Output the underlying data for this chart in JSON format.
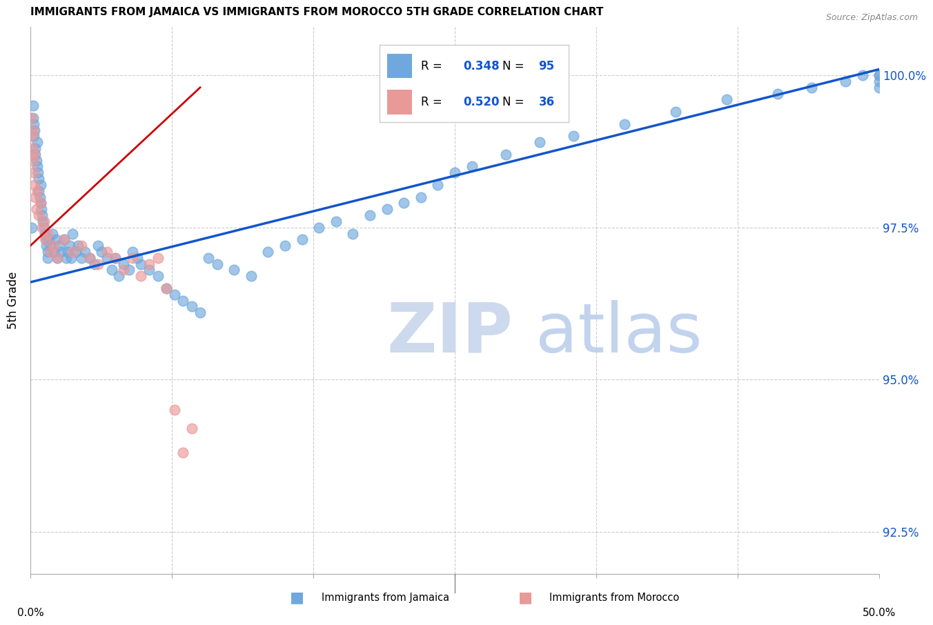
{
  "title": "IMMIGRANTS FROM JAMAICA VS IMMIGRANTS FROM MOROCCO 5TH GRADE CORRELATION CHART",
  "source": "Source: ZipAtlas.com",
  "ylabel": "5th Grade",
  "xlim": [
    0.0,
    50.0
  ],
  "ylim": [
    91.8,
    100.8
  ],
  "yticks": [
    92.5,
    95.0,
    97.5,
    100.0
  ],
  "jamaica_R": 0.348,
  "jamaica_N": 95,
  "morocco_R": 0.52,
  "morocco_N": 36,
  "jamaica_color": "#6fa8dc",
  "morocco_color": "#ea9999",
  "jamaica_line_color": "#1155cc",
  "morocco_line_color": "#cc0000",
  "jamaica_line": [
    0.0,
    50.0,
    96.6,
    100.1
  ],
  "morocco_line": [
    0.0,
    10.0,
    97.2,
    99.8
  ],
  "jamaica_x": [
    0.1,
    0.15,
    0.15,
    0.2,
    0.2,
    0.25,
    0.3,
    0.3,
    0.35,
    0.4,
    0.4,
    0.45,
    0.5,
    0.5,
    0.55,
    0.6,
    0.6,
    0.65,
    0.7,
    0.75,
    0.8,
    0.85,
    0.9,
    0.95,
    1.0,
    1.0,
    1.1,
    1.2,
    1.3,
    1.4,
    1.5,
    1.6,
    1.7,
    1.8,
    2.0,
    2.1,
    2.2,
    2.3,
    2.4,
    2.5,
    2.7,
    2.8,
    3.0,
    3.2,
    3.5,
    3.8,
    4.0,
    4.2,
    4.5,
    4.8,
    5.0,
    5.2,
    5.5,
    5.8,
    6.0,
    6.3,
    6.5,
    7.0,
    7.5,
    8.0,
    8.5,
    9.0,
    9.5,
    10.0,
    10.5,
    11.0,
    12.0,
    13.0,
    14.0,
    15.0,
    16.0,
    17.0,
    18.0,
    19.0,
    20.0,
    21.0,
    22.0,
    23.0,
    24.0,
    25.0,
    26.0,
    28.0,
    30.0,
    32.0,
    35.0,
    38.0,
    41.0,
    44.0,
    46.0,
    48.0,
    49.0,
    50.0,
    50.0,
    50.0,
    50.0
  ],
  "jamaica_y": [
    97.5,
    99.3,
    99.5,
    99.2,
    99.0,
    99.1,
    98.8,
    98.7,
    98.6,
    98.5,
    98.9,
    98.4,
    98.3,
    98.1,
    98.0,
    97.9,
    98.2,
    97.8,
    97.7,
    97.6,
    97.5,
    97.4,
    97.3,
    97.2,
    97.1,
    97.0,
    97.3,
    97.2,
    97.4,
    97.1,
    97.3,
    97.0,
    97.2,
    97.1,
    97.3,
    97.0,
    97.1,
    97.2,
    97.0,
    97.4,
    97.1,
    97.2,
    97.0,
    97.1,
    97.0,
    96.9,
    97.2,
    97.1,
    97.0,
    96.8,
    97.0,
    96.7,
    96.9,
    96.8,
    97.1,
    97.0,
    96.9,
    96.8,
    96.7,
    96.5,
    96.4,
    96.3,
    96.2,
    96.1,
    97.0,
    96.9,
    96.8,
    96.7,
    97.1,
    97.2,
    97.3,
    97.5,
    97.6,
    97.4,
    97.7,
    97.8,
    97.9,
    98.0,
    98.2,
    98.4,
    98.5,
    98.7,
    98.9,
    99.0,
    99.2,
    99.4,
    99.6,
    99.7,
    99.8,
    99.9,
    100.0,
    99.8,
    99.9,
    100.0,
    100.0
  ],
  "morocco_x": [
    0.05,
    0.1,
    0.12,
    0.15,
    0.18,
    0.2,
    0.22,
    0.25,
    0.3,
    0.35,
    0.4,
    0.5,
    0.6,
    0.7,
    0.8,
    0.9,
    1.0,
    1.2,
    1.4,
    1.6,
    2.0,
    2.5,
    3.0,
    3.5,
    4.0,
    4.5,
    5.0,
    5.5,
    6.0,
    6.5,
    7.0,
    7.5,
    8.0,
    8.5,
    9.0,
    9.5
  ],
  "morocco_y": [
    99.3,
    99.0,
    98.8,
    99.1,
    98.6,
    98.4,
    98.7,
    98.2,
    98.0,
    97.8,
    98.1,
    97.7,
    97.9,
    97.5,
    97.6,
    97.3,
    97.4,
    97.1,
    97.2,
    97.0,
    97.3,
    97.1,
    97.2,
    97.0,
    96.9,
    97.1,
    97.0,
    96.8,
    97.0,
    96.7,
    96.9,
    97.0,
    96.5,
    94.5,
    93.8,
    94.2
  ]
}
